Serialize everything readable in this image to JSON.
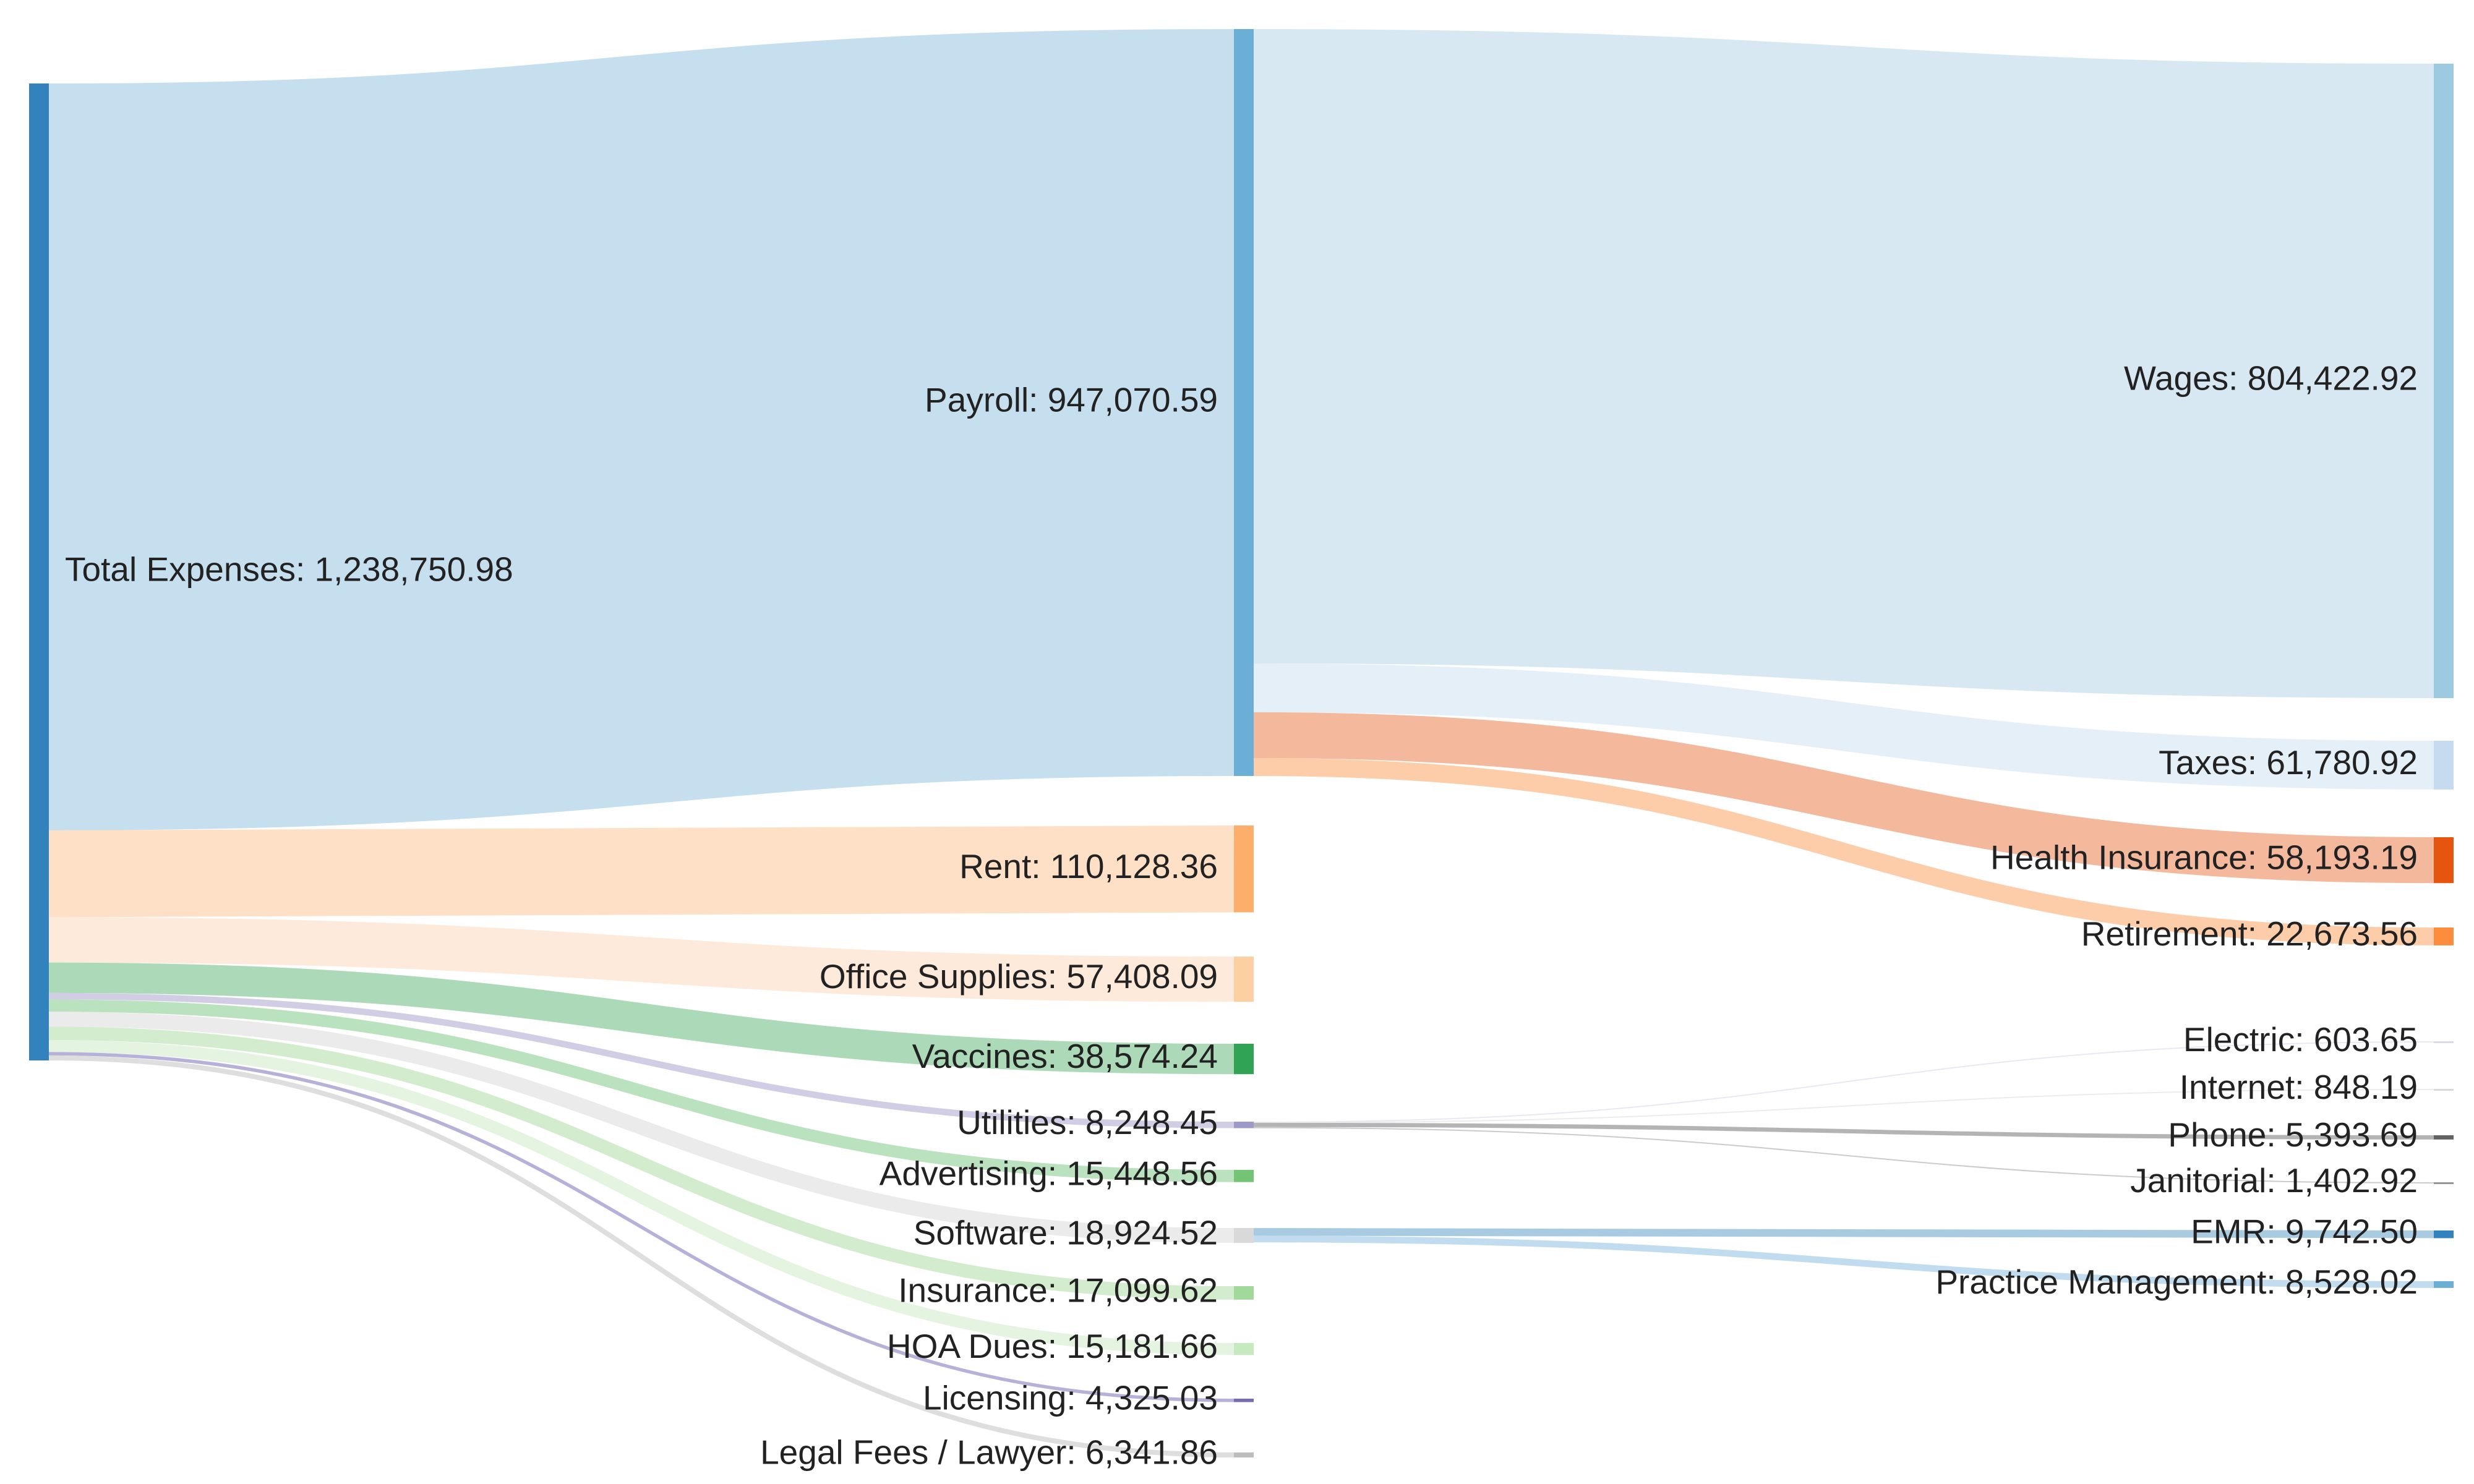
{
  "chart_data": {
    "type": "sankey",
    "title": "",
    "columns": [
      [
        "Total Expenses"
      ],
      [
        "Payroll",
        "Rent",
        "Office Supplies",
        "Vaccines",
        "Utilities",
        "Advertising",
        "Software",
        "Insurance",
        "HOA Dues",
        "Licensing",
        "Legal Fees / Lawyer"
      ],
      [
        "Wages",
        "Taxes",
        "Health Insurance",
        "Retirement",
        "Electric",
        "Internet",
        "Phone",
        "Janitorial",
        "EMR",
        "Practice Management"
      ]
    ],
    "nodes": [
      {
        "name": "Total Expenses",
        "value": 1238750.98,
        "label": "Total Expenses: 1,238,750.98",
        "color": "#3182bd"
      },
      {
        "name": "Payroll",
        "value": 947070.59,
        "label": "Payroll: 947,070.59",
        "color": "#6baed6"
      },
      {
        "name": "Rent",
        "value": 110128.36,
        "label": "Rent: 110,128.36",
        "color": "#fdae6b"
      },
      {
        "name": "Office Supplies",
        "value": 57408.09,
        "label": "Office Supplies: 57,408.09",
        "color": "#fdd0a2"
      },
      {
        "name": "Vaccines",
        "value": 38574.24,
        "label": "Vaccines: 38,574.24",
        "color": "#31a354"
      },
      {
        "name": "Utilities",
        "value": 8248.45,
        "label": "Utilities: 8,248.45",
        "color": "#9e9ac8"
      },
      {
        "name": "Advertising",
        "value": 15448.56,
        "label": "Advertising: 15,448.56",
        "color": "#74c476"
      },
      {
        "name": "Software",
        "value": 18924.52,
        "label": "Software: 18,924.52",
        "color": "#d9d9d9"
      },
      {
        "name": "Insurance",
        "value": 17099.62,
        "label": "Insurance: 17,099.62",
        "color": "#a1d99b"
      },
      {
        "name": "HOA Dues",
        "value": 15181.66,
        "label": "HOA Dues: 15,181.66",
        "color": "#c7e9c0"
      },
      {
        "name": "Licensing",
        "value": 4325.03,
        "label": "Licensing: 4,325.03",
        "color": "#756bb1"
      },
      {
        "name": "Legal Fees / Lawyer",
        "value": 6341.86,
        "label": "Legal Fees / Lawyer: 6,341.86",
        "color": "#bdbdbd"
      },
      {
        "name": "Wages",
        "value": 804422.92,
        "label": "Wages: 804,422.92",
        "color": "#9ecae1"
      },
      {
        "name": "Taxes",
        "value": 61780.92,
        "label": "Taxes: 61,780.92",
        "color": "#c6dbef"
      },
      {
        "name": "Health Insurance",
        "value": 58193.19,
        "label": "Health Insurance: 58,193.19",
        "color": "#e6550d"
      },
      {
        "name": "Retirement",
        "value": 22673.56,
        "label": "Retirement: 22,673.56",
        "color": "#fd8d3c"
      },
      {
        "name": "Electric",
        "value": 603.65,
        "label": "Electric: 603.65",
        "color": "#dadaeb"
      },
      {
        "name": "Internet",
        "value": 848.19,
        "label": "Internet: 848.19",
        "color": "#d9d9d9"
      },
      {
        "name": "Phone",
        "value": 5393.69,
        "label": "Phone: 5,393.69",
        "color": "#636363"
      },
      {
        "name": "Janitorial",
        "value": 1402.92,
        "label": "Janitorial: 1,402.92",
        "color": "#969696"
      },
      {
        "name": "EMR",
        "value": 9742.5,
        "label": "EMR: 9,742.50",
        "color": "#3182bd"
      },
      {
        "name": "Practice Management",
        "value": 8528.02,
        "label": "Practice Management: 8,528.02",
        "color": "#6baed6"
      }
    ],
    "links": [
      {
        "source": "Total Expenses",
        "target": "Payroll",
        "value": 947070.59,
        "color": "#c6dfef"
      },
      {
        "source": "Total Expenses",
        "target": "Rent",
        "value": 110128.36,
        "color": "#fde0c5"
      },
      {
        "source": "Total Expenses",
        "target": "Office Supplies",
        "value": 57408.09,
        "color": "#feeadb"
      },
      {
        "source": "Total Expenses",
        "target": "Vaccines",
        "value": 38574.24,
        "color": "#acdab8"
      },
      {
        "source": "Total Expenses",
        "target": "Utilities",
        "value": 8248.45,
        "color": "#d0cde5"
      },
      {
        "source": "Total Expenses",
        "target": "Advertising",
        "value": 15448.56,
        "color": "#bbe2bf"
      },
      {
        "source": "Total Expenses",
        "target": "Software",
        "value": 18924.52,
        "color": "#ebebeb"
      },
      {
        "source": "Total Expenses",
        "target": "Insurance",
        "value": 17099.62,
        "color": "#d3ecce"
      },
      {
        "source": "Total Expenses",
        "target": "HOA Dues",
        "value": 15181.66,
        "color": "#e4f4e0"
      },
      {
        "source": "Total Expenses",
        "target": "Licensing",
        "value": 4325.03,
        "color": "#b6b1d8"
      },
      {
        "source": "Total Expenses",
        "target": "Legal Fees / Lawyer",
        "value": 6341.86,
        "color": "#dedede"
      },
      {
        "source": "Payroll",
        "target": "Wages",
        "value": 804422.92,
        "color": "#d7e8f3"
      },
      {
        "source": "Payroll",
        "target": "Taxes",
        "value": 61780.92,
        "color": "#e5eff8"
      },
      {
        "source": "Payroll",
        "target": "Health Insurance",
        "value": 58193.19,
        "color": "#f4b89d"
      },
      {
        "source": "Payroll",
        "target": "Retirement",
        "value": 22673.56,
        "color": "#fdcda9"
      },
      {
        "source": "Utilities",
        "target": "Electric",
        "value": 603.65,
        "color": "#e8e8f2"
      },
      {
        "source": "Utilities",
        "target": "Internet",
        "value": 848.19,
        "color": "#ececec"
      },
      {
        "source": "Utilities",
        "target": "Phone",
        "value": 5393.69,
        "color": "#b4b4b4"
      },
      {
        "source": "Utilities",
        "target": "Janitorial",
        "value": 1402.92,
        "color": "#cbcbcb"
      },
      {
        "source": "Software",
        "target": "EMR",
        "value": 9742.5,
        "color": "#a8cbe2"
      },
      {
        "source": "Software",
        "target": "Practice Management",
        "value": 8528.02,
        "color": "#c1dcee"
      }
    ]
  }
}
